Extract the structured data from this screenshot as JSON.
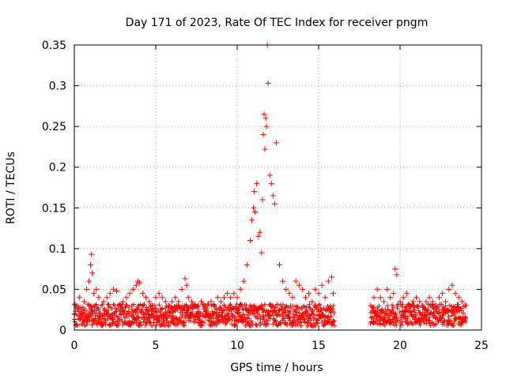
{
  "chart_data": {
    "type": "scatter",
    "title": "Day 171 of 2023, Rate Of TEC Index for receiver pngm",
    "xlabel": "GPS time / hours",
    "ylabel": "ROTI / TECUs",
    "xlim": [
      0,
      25
    ],
    "ylim": [
      0,
      0.35
    ],
    "xticks": [
      0,
      5,
      10,
      15,
      20,
      25
    ],
    "xtick_labels": [
      "0",
      "5",
      "10",
      "15",
      "20",
      "25"
    ],
    "yticks": [
      0,
      0.05,
      0.1,
      0.15,
      0.2,
      0.25,
      0.3,
      0.35
    ],
    "ytick_labels": [
      "0",
      "0.05",
      "0.1",
      "0.15",
      "0.2",
      "0.25",
      "0.3",
      "0.35"
    ],
    "grid": true,
    "marker": "+",
    "series": [
      {
        "name": "ROTI",
        "color": "#ff0000",
        "x": [
          0.0,
          0.15,
          0.3,
          0.45,
          0.6,
          0.75,
          0.9,
          1.0,
          1.05,
          1.1,
          1.2,
          1.35,
          1.5,
          1.65,
          1.8,
          2.0,
          2.2,
          2.4,
          2.6,
          2.8,
          3.0,
          3.2,
          3.4,
          3.6,
          3.8,
          3.9,
          4.0,
          4.2,
          4.4,
          4.6,
          4.8,
          5.0,
          5.2,
          5.4,
          5.6,
          5.8,
          6.0,
          6.2,
          6.4,
          6.6,
          6.8,
          6.9,
          7.0,
          7.2,
          7.4,
          7.6,
          7.8,
          8.0,
          8.2,
          8.4,
          8.6,
          8.8,
          9.0,
          9.2,
          9.4,
          9.6,
          9.8,
          10.0,
          10.2,
          10.4,
          10.6,
          10.8,
          10.9,
          11.0,
          11.05,
          11.1,
          11.2,
          11.3,
          11.4,
          11.5,
          11.55,
          11.6,
          11.65,
          11.7,
          11.75,
          11.8,
          11.85,
          11.9,
          12.0,
          12.1,
          12.2,
          12.3,
          12.4,
          12.6,
          12.8,
          13.0,
          13.2,
          13.4,
          13.6,
          13.8,
          14.0,
          14.2,
          14.4,
          14.6,
          14.8,
          15.0,
          15.2,
          15.4,
          15.6,
          15.8,
          15.9,
          18.2,
          18.4,
          18.6,
          18.8,
          19.0,
          19.2,
          19.4,
          19.6,
          19.7,
          19.8,
          20.0,
          20.2,
          20.4,
          20.6,
          20.8,
          21.0,
          21.2,
          21.4,
          21.6,
          21.8,
          22.0,
          22.2,
          22.4,
          22.6,
          22.8,
          23.0,
          23.2,
          23.4,
          23.6,
          23.8,
          24.0
        ],
        "y": [
          0.02,
          0.03,
          0.04,
          0.025,
          0.035,
          0.05,
          0.06,
          0.08,
          0.093,
          0.07,
          0.045,
          0.05,
          0.04,
          0.03,
          0.035,
          0.04,
          0.045,
          0.05,
          0.048,
          0.03,
          0.035,
          0.04,
          0.045,
          0.05,
          0.055,
          0.06,
          0.058,
          0.045,
          0.04,
          0.035,
          0.03,
          0.04,
          0.045,
          0.04,
          0.035,
          0.03,
          0.035,
          0.04,
          0.035,
          0.05,
          0.063,
          0.055,
          0.04,
          0.035,
          0.03,
          0.03,
          0.035,
          0.03,
          0.032,
          0.035,
          0.03,
          0.04,
          0.035,
          0.04,
          0.045,
          0.04,
          0.045,
          0.04,
          0.05,
          0.06,
          0.08,
          0.11,
          0.135,
          0.15,
          0.17,
          0.145,
          0.18,
          0.115,
          0.12,
          0.095,
          0.16,
          0.24,
          0.265,
          0.222,
          0.26,
          0.25,
          0.35,
          0.303,
          0.19,
          0.18,
          0.165,
          0.155,
          0.23,
          0.08,
          0.06,
          0.05,
          0.045,
          0.04,
          0.06,
          0.055,
          0.05,
          0.04,
          0.045,
          0.035,
          0.05,
          0.045,
          0.055,
          0.04,
          0.06,
          0.065,
          0.045,
          0.03,
          0.04,
          0.05,
          0.04,
          0.035,
          0.05,
          0.04,
          0.045,
          0.075,
          0.068,
          0.035,
          0.04,
          0.045,
          0.03,
          0.035,
          0.04,
          0.035,
          0.03,
          0.035,
          0.04,
          0.035,
          0.03,
          0.04,
          0.045,
          0.035,
          0.05,
          0.055,
          0.045,
          0.04,
          0.035,
          0.03
        ]
      }
    ]
  }
}
